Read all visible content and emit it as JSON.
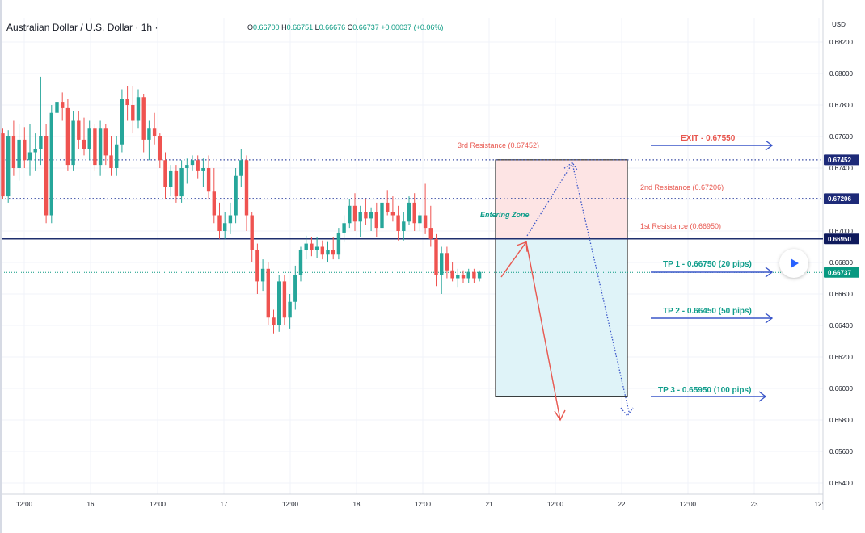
{
  "header": {
    "symbol": "Australian Dollar / U.S. Dollar",
    "interval": "1h",
    "ohlc": {
      "o": "0.66700",
      "h": "0.66751",
      "l": "0.66676",
      "c": "0.66737",
      "change": "+0.00037 (+0.06%)"
    },
    "currency": "USD"
  },
  "colors": {
    "up": "#26a69a",
    "down": "#ef5350",
    "level_line": "#1f2f6e",
    "dotted_level": "#3d4fa5",
    "current_price": "#089981",
    "resistance_text": "#e8574f",
    "tp_text": "#0f9d8a",
    "arrow_blue": "#3a56c9",
    "zone_red": "#fde4e4",
    "zone_blue": "#dff3f8"
  },
  "chart_data": {
    "type": "candlestick",
    "y_axis": {
      "range": [
        0.6534,
        0.6827
      ],
      "ticks": [
        "0.68200",
        "0.68000",
        "0.67800",
        "0.67600",
        "0.67400",
        "0.67200",
        "0.67000",
        "0.66800",
        "0.66600",
        "0.66400",
        "0.66200",
        "0.66000",
        "0.65800",
        "0.65600",
        "0.65400"
      ],
      "price_labels": [
        {
          "value": "0.67452",
          "style": "dotted"
        },
        {
          "value": "0.67206",
          "style": "dotted"
        },
        {
          "value": "0.66950",
          "style": "solid"
        },
        {
          "value": "0.66737",
          "style": "current"
        }
      ]
    },
    "x_axis": {
      "ticks": [
        "12:00",
        "16",
        "12:00",
        "17",
        "12:00",
        "18",
        "12:00",
        "21",
        "12:00",
        "22",
        "12:00",
        "23",
        "12:"
      ]
    },
    "candles": [
      [
        0.6762,
        0.6765,
        0.672,
        0.6722
      ],
      [
        0.6722,
        0.6764,
        0.6718,
        0.676
      ],
      [
        0.676,
        0.677,
        0.6735,
        0.674
      ],
      [
        0.674,
        0.6768,
        0.6732,
        0.6758
      ],
      [
        0.6758,
        0.6766,
        0.674,
        0.6745
      ],
      [
        0.6745,
        0.6768,
        0.6735,
        0.675
      ],
      [
        0.675,
        0.6762,
        0.6738,
        0.6752
      ],
      [
        0.6752,
        0.6798,
        0.6742,
        0.676
      ],
      [
        0.676,
        0.6768,
        0.6705,
        0.671
      ],
      [
        0.671,
        0.678,
        0.6705,
        0.6775
      ],
      [
        0.6775,
        0.679,
        0.676,
        0.6782
      ],
      [
        0.6782,
        0.6788,
        0.677,
        0.6778
      ],
      [
        0.6778,
        0.6784,
        0.6738,
        0.6742
      ],
      [
        0.6742,
        0.6776,
        0.6738,
        0.677
      ],
      [
        0.677,
        0.6776,
        0.6752,
        0.6758
      ],
      [
        0.6758,
        0.6772,
        0.6748,
        0.6752
      ],
      [
        0.6752,
        0.677,
        0.6745,
        0.6765
      ],
      [
        0.6765,
        0.6768,
        0.6738,
        0.6742
      ],
      [
        0.6742,
        0.677,
        0.6735,
        0.6765
      ],
      [
        0.6765,
        0.6768,
        0.6742,
        0.6748
      ],
      [
        0.6748,
        0.676,
        0.6735,
        0.674
      ],
      [
        0.674,
        0.676,
        0.6735,
        0.6755
      ],
      [
        0.6755,
        0.679,
        0.675,
        0.6784
      ],
      [
        0.6784,
        0.6792,
        0.677,
        0.678
      ],
      [
        0.678,
        0.6792,
        0.6762,
        0.677
      ],
      [
        0.677,
        0.679,
        0.6765,
        0.6785
      ],
      [
        0.6785,
        0.6787,
        0.675,
        0.6758
      ],
      [
        0.6758,
        0.677,
        0.6745,
        0.6765
      ],
      [
        0.6765,
        0.6775,
        0.6755,
        0.676
      ],
      [
        0.676,
        0.6762,
        0.674,
        0.6745
      ],
      [
        0.6745,
        0.675,
        0.672,
        0.6728
      ],
      [
        0.6728,
        0.6742,
        0.6722,
        0.6738
      ],
      [
        0.6738,
        0.6742,
        0.6718,
        0.6722
      ],
      [
        0.6722,
        0.6745,
        0.6718,
        0.674
      ],
      [
        0.674,
        0.6746,
        0.673,
        0.6742
      ],
      [
        0.6742,
        0.6748,
        0.6738,
        0.6745
      ],
      [
        0.6745,
        0.6748,
        0.6733,
        0.6738
      ],
      [
        0.6738,
        0.6746,
        0.6728,
        0.674
      ],
      [
        0.674,
        0.6748,
        0.672,
        0.6725
      ],
      [
        0.6725,
        0.674,
        0.6705,
        0.671
      ],
      [
        0.671,
        0.6718,
        0.6695,
        0.67
      ],
      [
        0.67,
        0.6712,
        0.6695,
        0.6705
      ],
      [
        0.6705,
        0.6718,
        0.6698,
        0.671
      ],
      [
        0.671,
        0.674,
        0.6705,
        0.6735
      ],
      [
        0.6735,
        0.6752,
        0.6728,
        0.6745
      ],
      [
        0.6745,
        0.6748,
        0.67,
        0.671
      ],
      [
        0.671,
        0.6712,
        0.668,
        0.6688
      ],
      [
        0.6688,
        0.6692,
        0.666,
        0.6668
      ],
      [
        0.6668,
        0.6682,
        0.6662,
        0.6676
      ],
      [
        0.6676,
        0.668,
        0.664,
        0.6645
      ],
      [
        0.6645,
        0.665,
        0.6635,
        0.664
      ],
      [
        0.664,
        0.6672,
        0.6636,
        0.6668
      ],
      [
        0.6668,
        0.6672,
        0.664,
        0.6645
      ],
      [
        0.6645,
        0.666,
        0.6638,
        0.6655
      ],
      [
        0.6655,
        0.6678,
        0.665,
        0.6672
      ],
      [
        0.6672,
        0.669,
        0.6668,
        0.6688
      ],
      [
        0.6688,
        0.6697,
        0.6682,
        0.6692
      ],
      [
        0.6692,
        0.6696,
        0.6684,
        0.6688
      ],
      [
        0.6688,
        0.6696,
        0.6683,
        0.669
      ],
      [
        0.669,
        0.6694,
        0.6682,
        0.6685
      ],
      [
        0.6685,
        0.6693,
        0.668,
        0.6688
      ],
      [
        0.6688,
        0.6696,
        0.6682,
        0.6685
      ],
      [
        0.6685,
        0.6702,
        0.6682,
        0.6699
      ],
      [
        0.6699,
        0.671,
        0.6693,
        0.6705
      ],
      [
        0.6705,
        0.672,
        0.6702,
        0.6716
      ],
      [
        0.6716,
        0.6724,
        0.67,
        0.6706
      ],
      [
        0.6706,
        0.6716,
        0.6696,
        0.6712
      ],
      [
        0.6712,
        0.672,
        0.6704,
        0.6708
      ],
      [
        0.6708,
        0.6715,
        0.67,
        0.6712
      ],
      [
        0.6712,
        0.6718,
        0.6696,
        0.6702
      ],
      [
        0.6702,
        0.6722,
        0.6698,
        0.6718
      ],
      [
        0.6718,
        0.6726,
        0.671,
        0.6712
      ],
      [
        0.6712,
        0.6722,
        0.6706,
        0.671
      ],
      [
        0.671,
        0.6716,
        0.6694,
        0.67
      ],
      [
        0.67,
        0.6712,
        0.6694,
        0.6706
      ],
      [
        0.6706,
        0.6722,
        0.6704,
        0.6718
      ],
      [
        0.6718,
        0.6724,
        0.67,
        0.6705
      ],
      [
        0.6705,
        0.6712,
        0.67,
        0.671
      ],
      [
        0.671,
        0.673,
        0.6698,
        0.6702
      ],
      [
        0.6702,
        0.6716,
        0.669,
        0.6695
      ],
      [
        0.6695,
        0.6698,
        0.6665,
        0.6672
      ],
      [
        0.6672,
        0.669,
        0.666,
        0.6686
      ],
      [
        0.6686,
        0.669,
        0.667,
        0.6675
      ],
      [
        0.6675,
        0.668,
        0.6668,
        0.667
      ],
      [
        0.667,
        0.6676,
        0.6664,
        0.6672
      ],
      [
        0.6672,
        0.6675,
        0.6667,
        0.667
      ],
      [
        0.667,
        0.6676,
        0.6667,
        0.6674
      ],
      [
        0.6674,
        0.6676,
        0.6667,
        0.667
      ],
      [
        0.667,
        0.6675,
        0.6668,
        0.6674
      ]
    ],
    "levels": [
      {
        "name": "3rd Resistance (0.67452)",
        "value": 0.67452,
        "style": "dotted"
      },
      {
        "name": "2nd Resistance (0.67206)",
        "value": 0.67206,
        "style": "dotted"
      },
      {
        "name": "1st Resistance (0.66950)",
        "value": 0.6695,
        "style": "solid"
      },
      {
        "name": "current price",
        "value": 0.66737,
        "style": "current"
      }
    ],
    "annotations": {
      "exit": "EXIT - 0.67550",
      "tp1": "TP 1 - 0.66750 (20 pips)",
      "tp2": "TP 2 - 0.66450 (50 pips)",
      "tp3": "TP 3 - 0.65950 (100 pips)",
      "entering_zone": "Entering Zone",
      "r3": "3rd Resistance (0.67452)",
      "r2": "2nd Resistance (0.67206)",
      "r1": "1st Resistance (0.66950)"
    },
    "zones": {
      "stop_zone": [
        0.67452,
        0.6695
      ],
      "target_zone": [
        0.6695,
        0.6595
      ]
    }
  }
}
